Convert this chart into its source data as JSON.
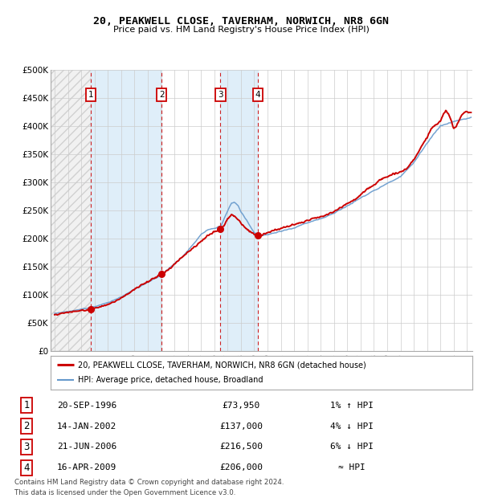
{
  "title1": "20, PEAKWELL CLOSE, TAVERHAM, NORWICH, NR8 6GN",
  "title2": "Price paid vs. HM Land Registry's House Price Index (HPI)",
  "ylim": [
    0,
    500000
  ],
  "yticks": [
    0,
    50000,
    100000,
    150000,
    200000,
    250000,
    300000,
    350000,
    400000,
    450000,
    500000
  ],
  "ytick_labels": [
    "£0",
    "£50K",
    "£100K",
    "£150K",
    "£200K",
    "£250K",
    "£300K",
    "£350K",
    "£400K",
    "£450K",
    "£500K"
  ],
  "xlim_start": 1993.7,
  "xlim_end": 2025.4,
  "sale_dates": [
    1996.72,
    2002.04,
    2006.47,
    2009.29
  ],
  "sale_prices": [
    73950,
    137000,
    216500,
    206000
  ],
  "sale_labels": [
    "1",
    "2",
    "3",
    "4"
  ],
  "legend_line1": "20, PEAKWELL CLOSE, TAVERHAM, NORWICH, NR8 6GN (detached house)",
  "legend_line2": "HPI: Average price, detached house, Broadland",
  "table_rows": [
    [
      "1",
      "20-SEP-1996",
      "£73,950",
      "1% ↑ HPI"
    ],
    [
      "2",
      "14-JAN-2002",
      "£137,000",
      "4% ↓ HPI"
    ],
    [
      "3",
      "21-JUN-2006",
      "£216,500",
      "6% ↓ HPI"
    ],
    [
      "4",
      "16-APR-2009",
      "£206,000",
      "≈ HPI"
    ]
  ],
  "footnote1": "Contains HM Land Registry data © Crown copyright and database right 2024.",
  "footnote2": "This data is licensed under the Open Government Licence v3.0.",
  "hpi_color": "#6699cc",
  "price_color": "#cc0000",
  "bg_color": "#ffffff",
  "grid_color": "#cccccc"
}
